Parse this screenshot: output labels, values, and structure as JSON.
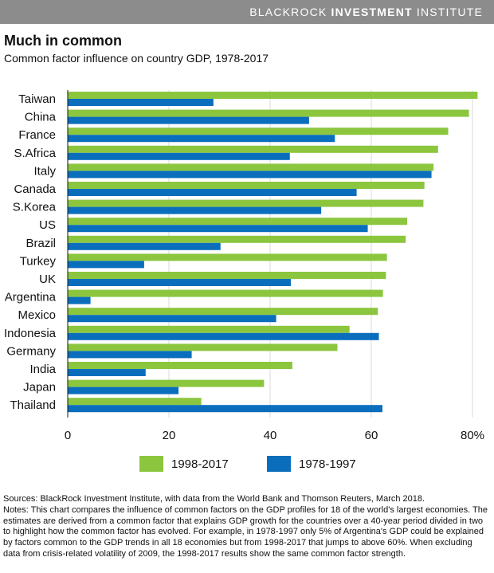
{
  "header": {
    "brand_part1": "BLACKROCK",
    "brand_part2": "INVESTMENT",
    "brand_part3": "INSTITUTE"
  },
  "title": "Much in common",
  "subtitle": "Common factor influence on country GDP, 1978-2017",
  "colors": {
    "green": "#8cc63f",
    "blue": "#0a6ebd",
    "header": "#8c8c8c",
    "grid": "#d9d9d9"
  },
  "chart_data": {
    "type": "bar",
    "orientation": "horizontal",
    "categories": [
      "Taiwan",
      "China",
      "France",
      "S.Africa",
      "Italy",
      "Canada",
      "S.Korea",
      "US",
      "Brazil",
      "Turkey",
      "UK",
      "Argentina",
      "Mexico",
      "Indonesia",
      "Germany",
      "India",
      "Japan",
      "Thailand"
    ],
    "series": [
      {
        "name": "1998-2017",
        "color": "#8cc63f",
        "values": [
          81,
          79.3,
          75.2,
          73.2,
          72.3,
          70.5,
          70.3,
          67.1,
          66.8,
          63.1,
          62.9,
          62.3,
          61.3,
          55.7,
          53.3,
          44.4,
          38.8,
          26.4
        ]
      },
      {
        "name": "1978-1997",
        "color": "#0a6ebd",
        "values": [
          28.8,
          47.7,
          52.8,
          43.9,
          71.9,
          57.1,
          50.1,
          59.3,
          30.2,
          15.1,
          44.1,
          4.5,
          41.2,
          61.5,
          24.5,
          15.4,
          21.9,
          62.2
        ]
      }
    ],
    "x_ticks": [
      0,
      20,
      40,
      60,
      80
    ],
    "x_tick_labels": [
      "0",
      "20",
      "40",
      "60",
      "80%"
    ],
    "xlim": [
      0,
      81
    ]
  },
  "legend": {
    "items": [
      {
        "label": "1998-2017",
        "color": "#8cc63f"
      },
      {
        "label": "1978-1997",
        "color": "#0a6ebd"
      }
    ]
  },
  "notes": {
    "sources": "Sources: BlackRock Investment Institute, with data from the World Bank and Thomson Reuters, March 2018.",
    "body": "Notes: This chart compares the influence of common factors on the GDP profiles for 18 of the world's largest economies. The estimates are derived from a common factor that explains GDP growth for the countries over a 40-year period divided in two to highlight how the common factor has evolved. For example, in 1978-1997 only 5% of Argentina's GDP could be explained by factors common to the GDP trends in all 18 economies but from 1998-2017 that jumps to above 60%. When excluding data from crisis-related volatility of 2009, the 1998-2017 results show the same common factor strength."
  }
}
